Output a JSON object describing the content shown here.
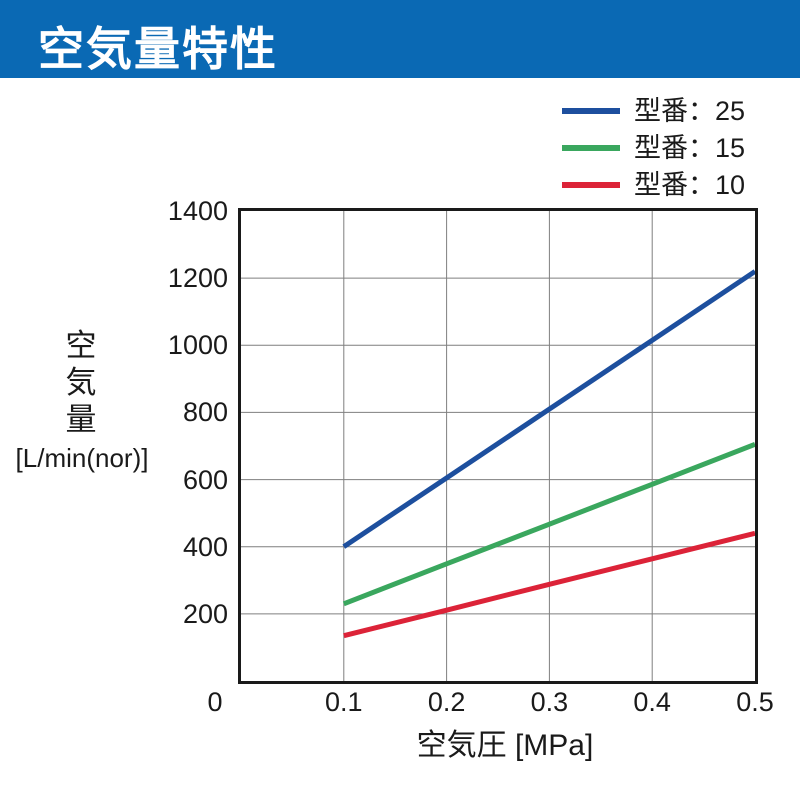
{
  "header": {
    "title": "空気量特性",
    "bg_color": "#0a69b4",
    "text_color": "#ffffff"
  },
  "legend": {
    "items": [
      {
        "label": "型番：25",
        "color": "#1d4f9e"
      },
      {
        "label": "型番：15",
        "color": "#3aa75e"
      },
      {
        "label": "型番：10",
        "color": "#dc2338"
      }
    ]
  },
  "chart_data": {
    "type": "line",
    "x": [
      0.1,
      0.2,
      0.3,
      0.4,
      0.5
    ],
    "series": [
      {
        "name": "型番：25",
        "color": "#1d4f9e",
        "values": [
          400,
          605,
          810,
          1015,
          1220
        ]
      },
      {
        "name": "型番：15",
        "color": "#3aa75e",
        "values": [
          230,
          349,
          467,
          586,
          705
        ]
      },
      {
        "name": "型番：10",
        "color": "#dc2338",
        "values": [
          135,
          211,
          288,
          364,
          440
        ]
      }
    ],
    "xlabel": "空気圧 [MPa]",
    "ylabel_vertical": "空気量",
    "ylabel_unit": "[L/min(nor)]",
    "xlim": [
      0,
      0.5
    ],
    "ylim": [
      0,
      1400
    ],
    "x_ticks": [
      "0",
      "0.1",
      "0.2",
      "0.3",
      "0.4",
      "0.5"
    ],
    "y_ticks": [
      "0",
      "200",
      "400",
      "600",
      "800",
      "1000",
      "1200",
      "1400"
    ],
    "grid": true,
    "grid_color": "#7f7f7f",
    "border_color": "#1a1a1a",
    "legend_position": "top-right"
  }
}
